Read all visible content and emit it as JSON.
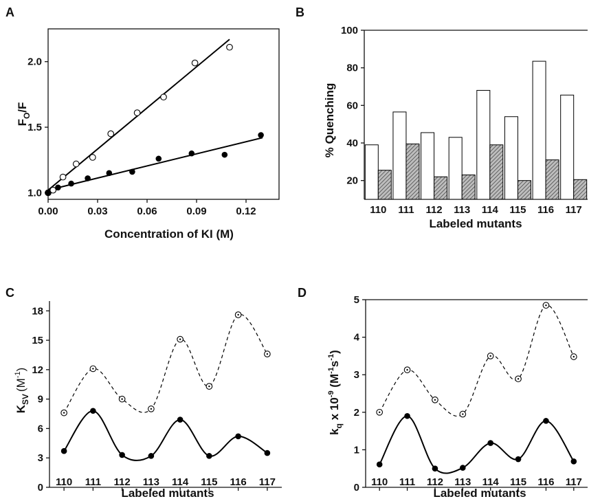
{
  "chart_data": [
    {
      "panel": "A",
      "type": "scatter",
      "xlabel": "Concentration of KI (M)",
      "ylabel_main": "F",
      "ylabel_sub": "O",
      "ylabel_tail": "/F",
      "xticks": [
        "0.00",
        "0.03",
        "0.06",
        "0.09",
        "0.12"
      ],
      "yticks": [
        "1.0",
        "1.5",
        "2.0"
      ],
      "xlim": [
        0,
        0.14
      ],
      "ylim": [
        0.95,
        2.25
      ],
      "series": [
        {
          "marker": "open-circle",
          "x": [
            0.0,
            0.003,
            0.009,
            0.017,
            0.027,
            0.038,
            0.054,
            0.07,
            0.089,
            0.11
          ],
          "y": [
            1.0,
            1.02,
            1.12,
            1.22,
            1.27,
            1.45,
            1.61,
            1.73,
            1.99,
            2.11
          ],
          "fit": [
            [
              0.0,
              1.02
            ],
            [
              0.11,
              2.17
            ]
          ]
        },
        {
          "marker": "filled-circle",
          "x": [
            0.0,
            0.006,
            0.014,
            0.024,
            0.037,
            0.051,
            0.067,
            0.087,
            0.107,
            0.129
          ],
          "y": [
            1.0,
            1.04,
            1.07,
            1.11,
            1.15,
            1.16,
            1.26,
            1.3,
            1.29,
            1.44
          ],
          "fit": [
            [
              0.0,
              1.02
            ],
            [
              0.13,
              1.42
            ]
          ]
        }
      ]
    },
    {
      "panel": "B",
      "type": "bar",
      "ylabel": "% Quenching",
      "xlabel": "Labeled mutants",
      "categories": [
        "110",
        "111",
        "112",
        "113",
        "114",
        "115",
        "116",
        "117"
      ],
      "yticks": [
        "20",
        "40",
        "60",
        "80",
        "100"
      ],
      "ylim": [
        10,
        100
      ],
      "series": [
        {
          "fill": "white",
          "values": [
            39,
            56.5,
            45.5,
            43,
            68,
            54,
            83.5,
            65.5
          ]
        },
        {
          "fill": "hatched",
          "values": [
            25.5,
            39.5,
            22,
            23,
            39,
            20,
            31,
            20.5
          ]
        }
      ]
    },
    {
      "panel": "C",
      "type": "line",
      "ylabel_main": "K",
      "ylabel_sub": "SV",
      "ylabel_unit": "(M",
      "ylabel_sup": "-1",
      "ylabel_close": ")",
      "xlabel": "Labeled mutants",
      "categories": [
        "110",
        "111",
        "112",
        "113",
        "114",
        "115",
        "116",
        "117"
      ],
      "yticks": [
        "0",
        "3",
        "6",
        "9",
        "12",
        "15",
        "18"
      ],
      "ylim": [
        0,
        19
      ],
      "series": [
        {
          "marker": "dotted-circle",
          "style": "dashed",
          "values": [
            7.6,
            12.1,
            9.0,
            8.0,
            15.1,
            10.3,
            17.6,
            13.6
          ]
        },
        {
          "marker": "filled-circle",
          "style": "solid",
          "values": [
            3.7,
            7.8,
            3.3,
            3.2,
            6.9,
            3.2,
            5.2,
            3.5
          ]
        }
      ]
    },
    {
      "panel": "D",
      "type": "line",
      "ylabel_main": "k",
      "ylabel_sub": "q",
      "ylabel_mid": " x 10",
      "ylabel_sup": "-9",
      "ylabel_unit": " (M",
      "ylabel_sup2": "-1",
      "ylabel_s": "s",
      "ylabel_sup3": "-1",
      "ylabel_close": ")",
      "xlabel": "Labeled mutants",
      "categories": [
        "110",
        "111",
        "112",
        "113",
        "114",
        "115",
        "116",
        "117"
      ],
      "yticks": [
        "0",
        "1",
        "2",
        "3",
        "4",
        "5"
      ],
      "ylim": [
        0,
        5
      ],
      "series": [
        {
          "marker": "dotted-circle",
          "style": "dashed",
          "values": [
            2.0,
            3.13,
            2.33,
            1.95,
            3.5,
            2.89,
            4.85,
            3.48
          ]
        },
        {
          "marker": "filled-circle",
          "style": "solid",
          "values": [
            0.61,
            1.9,
            0.5,
            0.52,
            1.18,
            0.75,
            1.77,
            0.69
          ]
        }
      ]
    }
  ]
}
